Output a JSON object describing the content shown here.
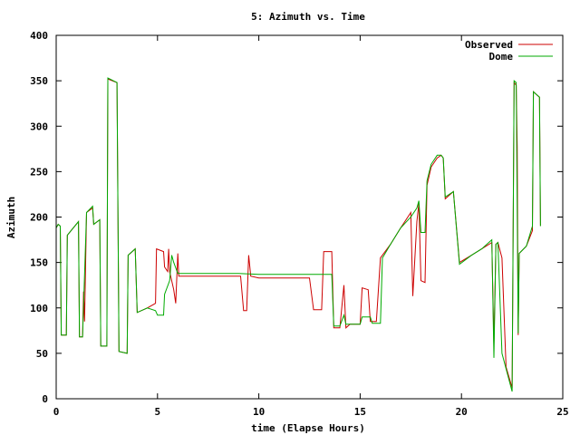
{
  "chart_data": {
    "type": "line",
    "title": "5: Azimuth vs. Time",
    "xlabel": "time (Elapse Hours)",
    "ylabel": "Azimuth",
    "xlim": [
      0,
      25
    ],
    "ylim": [
      0,
      400
    ],
    "xticks": [
      "0",
      "5",
      "10",
      "15",
      "20",
      "25"
    ],
    "yticks": [
      "0",
      "50",
      "100",
      "150",
      "200",
      "250",
      "300",
      "350",
      "400"
    ],
    "grid": false,
    "legend_position": "top-right",
    "series": [
      {
        "name": "Observed",
        "color": "#cc0000",
        "points": [
          [
            0.0,
            188
          ],
          [
            0.1,
            192
          ],
          [
            0.2,
            190
          ],
          [
            0.25,
            70
          ],
          [
            0.5,
            70
          ],
          [
            0.55,
            180
          ],
          [
            1.1,
            195
          ],
          [
            1.15,
            68
          ],
          [
            1.3,
            68
          ],
          [
            1.35,
            118
          ],
          [
            1.4,
            85
          ],
          [
            1.5,
            205
          ],
          [
            1.8,
            210
          ],
          [
            1.85,
            192
          ],
          [
            2.15,
            197
          ],
          [
            2.2,
            58
          ],
          [
            2.5,
            58
          ],
          [
            2.55,
            352
          ],
          [
            3.0,
            348
          ],
          [
            3.1,
            52
          ],
          [
            3.5,
            50
          ],
          [
            3.55,
            158
          ],
          [
            3.9,
            165
          ],
          [
            4.0,
            95
          ],
          [
            4.5,
            100
          ],
          [
            4.9,
            105
          ],
          [
            4.95,
            165
          ],
          [
            5.3,
            162
          ],
          [
            5.35,
            145
          ],
          [
            5.5,
            140
          ],
          [
            5.55,
            165
          ],
          [
            5.6,
            140
          ],
          [
            5.8,
            120
          ],
          [
            5.9,
            105
          ],
          [
            6.0,
            160
          ],
          [
            6.05,
            135
          ],
          [
            9.1,
            135
          ],
          [
            9.25,
            97
          ],
          [
            9.4,
            97
          ],
          [
            9.5,
            158
          ],
          [
            9.6,
            135
          ],
          [
            10.0,
            133
          ],
          [
            12.0,
            133
          ],
          [
            12.5,
            133
          ],
          [
            12.7,
            98
          ],
          [
            13.1,
            98
          ],
          [
            13.2,
            162
          ],
          [
            13.6,
            162
          ],
          [
            13.7,
            78
          ],
          [
            14.0,
            78
          ],
          [
            14.2,
            125
          ],
          [
            14.3,
            78
          ],
          [
            14.5,
            82
          ],
          [
            15.0,
            82
          ],
          [
            15.1,
            122
          ],
          [
            15.4,
            120
          ],
          [
            15.5,
            85
          ],
          [
            15.8,
            85
          ],
          [
            16.0,
            155
          ],
          [
            16.5,
            170
          ],
          [
            17.0,
            188
          ],
          [
            17.5,
            205
          ],
          [
            17.6,
            113
          ],
          [
            17.8,
            195
          ],
          [
            17.9,
            215
          ],
          [
            18.0,
            130
          ],
          [
            18.2,
            128
          ],
          [
            18.3,
            235
          ],
          [
            18.5,
            255
          ],
          [
            18.8,
            265
          ],
          [
            19.0,
            268
          ],
          [
            19.1,
            265
          ],
          [
            19.2,
            220
          ],
          [
            19.6,
            228
          ],
          [
            19.9,
            150
          ],
          [
            20.5,
            158
          ],
          [
            21.0,
            165
          ],
          [
            21.5,
            172
          ],
          [
            21.6,
            60
          ],
          [
            21.7,
            170
          ],
          [
            21.8,
            172
          ],
          [
            22.0,
            155
          ],
          [
            22.2,
            35
          ],
          [
            22.5,
            12
          ],
          [
            22.6,
            348
          ],
          [
            22.7,
            345
          ],
          [
            22.75,
            278
          ],
          [
            22.8,
            70
          ],
          [
            22.85,
            160
          ],
          [
            23.2,
            168
          ],
          [
            23.5,
            185
          ],
          [
            23.55,
            338
          ],
          [
            23.7,
            335
          ],
          [
            23.85,
            332
          ],
          [
            23.9,
            190
          ]
        ]
      },
      {
        "name": "Dome",
        "color": "#00aa00",
        "points": [
          [
            0.0,
            188
          ],
          [
            0.1,
            192
          ],
          [
            0.2,
            190
          ],
          [
            0.25,
            70
          ],
          [
            0.5,
            70
          ],
          [
            0.55,
            180
          ],
          [
            1.1,
            195
          ],
          [
            1.15,
            68
          ],
          [
            1.3,
            68
          ],
          [
            1.5,
            205
          ],
          [
            1.8,
            212
          ],
          [
            1.85,
            192
          ],
          [
            2.15,
            197
          ],
          [
            2.2,
            58
          ],
          [
            2.5,
            58
          ],
          [
            2.55,
            353
          ],
          [
            3.0,
            348
          ],
          [
            3.1,
            52
          ],
          [
            3.5,
            50
          ],
          [
            3.55,
            158
          ],
          [
            3.9,
            165
          ],
          [
            4.0,
            95
          ],
          [
            4.5,
            100
          ],
          [
            4.9,
            97
          ],
          [
            5.0,
            92
          ],
          [
            5.3,
            92
          ],
          [
            5.35,
            115
          ],
          [
            5.6,
            130
          ],
          [
            5.7,
            158
          ],
          [
            5.8,
            150
          ],
          [
            6.0,
            138
          ],
          [
            9.0,
            138
          ],
          [
            10.0,
            137
          ],
          [
            12.0,
            137
          ],
          [
            13.5,
            137
          ],
          [
            13.6,
            137
          ],
          [
            13.7,
            80
          ],
          [
            14.0,
            80
          ],
          [
            14.2,
            92
          ],
          [
            14.3,
            82
          ],
          [
            15.0,
            82
          ],
          [
            15.1,
            90
          ],
          [
            15.5,
            90
          ],
          [
            15.6,
            83
          ],
          [
            16.0,
            83
          ],
          [
            16.1,
            155
          ],
          [
            16.5,
            170
          ],
          [
            17.0,
            188
          ],
          [
            17.5,
            200
          ],
          [
            17.8,
            210
          ],
          [
            17.9,
            218
          ],
          [
            18.0,
            183
          ],
          [
            18.2,
            183
          ],
          [
            18.3,
            240
          ],
          [
            18.5,
            258
          ],
          [
            18.8,
            268
          ],
          [
            19.0,
            268
          ],
          [
            19.1,
            265
          ],
          [
            19.2,
            222
          ],
          [
            19.6,
            228
          ],
          [
            19.9,
            148
          ],
          [
            20.5,
            158
          ],
          [
            21.0,
            165
          ],
          [
            21.5,
            175
          ],
          [
            21.6,
            45
          ],
          [
            21.7,
            170
          ],
          [
            21.8,
            172
          ],
          [
            22.0,
            50
          ],
          [
            22.5,
            8
          ],
          [
            22.6,
            350
          ],
          [
            22.7,
            348
          ],
          [
            22.8,
            72
          ],
          [
            22.85,
            160
          ],
          [
            23.2,
            168
          ],
          [
            23.5,
            190
          ],
          [
            23.55,
            338
          ],
          [
            23.7,
            335
          ],
          [
            23.85,
            332
          ],
          [
            23.9,
            190
          ]
        ]
      }
    ]
  }
}
